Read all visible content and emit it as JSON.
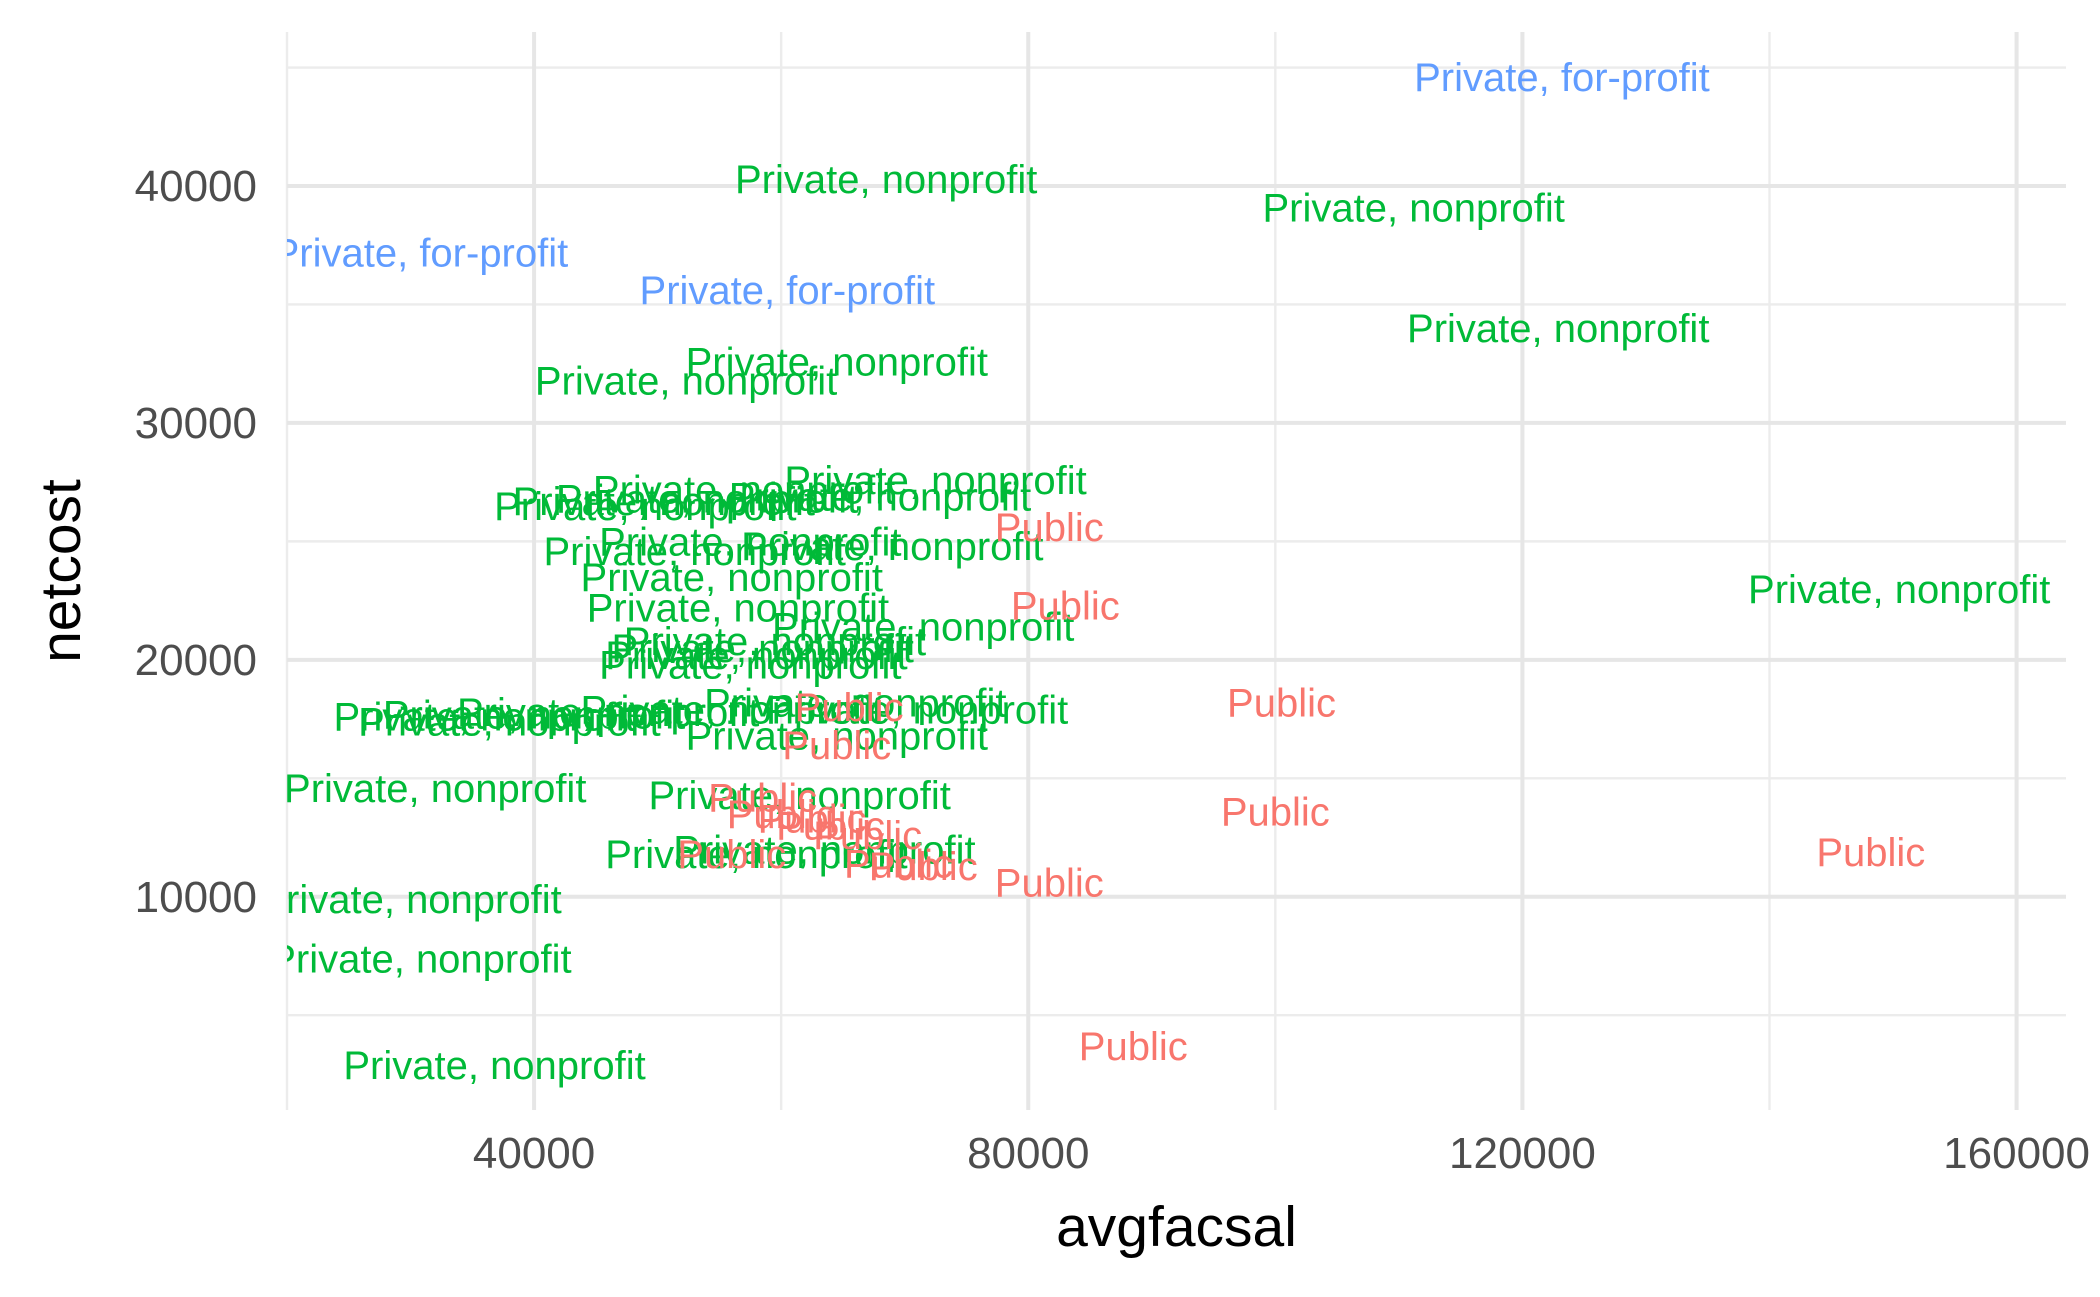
{
  "chart_data": {
    "type": "scatter",
    "geom": "text",
    "xlabel": "avgfacsal",
    "ylabel": "netcost",
    "xlim": [
      20000,
      164000
    ],
    "ylim": [
      1000,
      46500
    ],
    "x_ticks": [
      40000,
      80000,
      120000,
      160000
    ],
    "y_ticks": [
      10000,
      20000,
      30000,
      40000
    ],
    "grid": true,
    "legend": "none",
    "colors": {
      "Public": "#F8766D",
      "Private, nonprofit": "#00BA38",
      "Private, for-profit": "#619CFF"
    },
    "points": [
      {
        "x": 123200,
        "y": 44600,
        "label": "Private, for-profit"
      },
      {
        "x": 30800,
        "y": 37200,
        "label": "Private, for-profit"
      },
      {
        "x": 60500,
        "y": 35600,
        "label": "Private, for-profit"
      },
      {
        "x": 68500,
        "y": 40300,
        "label": "Private, nonprofit"
      },
      {
        "x": 111200,
        "y": 39100,
        "label": "Private, nonprofit"
      },
      {
        "x": 122900,
        "y": 34000,
        "label": "Private, nonprofit"
      },
      {
        "x": 64500,
        "y": 32600,
        "label": "Private, nonprofit"
      },
      {
        "x": 52300,
        "y": 31800,
        "label": "Private, nonprofit"
      },
      {
        "x": 72500,
        "y": 27600,
        "label": "Private, nonprofit"
      },
      {
        "x": 57000,
        "y": 27200,
        "label": "Private, nonprofit"
      },
      {
        "x": 68000,
        "y": 26900,
        "label": "Private, nonprofit"
      },
      {
        "x": 54000,
        "y": 26800,
        "label": "Private, nonprofit"
      },
      {
        "x": 50500,
        "y": 26700,
        "label": "Private, nonprofit"
      },
      {
        "x": 49000,
        "y": 26500,
        "label": "Private, nonprofit"
      },
      {
        "x": 57500,
        "y": 25000,
        "label": "Private, nonprofit"
      },
      {
        "x": 69000,
        "y": 24800,
        "label": "Private, nonprofit"
      },
      {
        "x": 53000,
        "y": 24600,
        "label": "Private, nonprofit"
      },
      {
        "x": 56000,
        "y": 23500,
        "label": "Private, nonprofit"
      },
      {
        "x": 56500,
        "y": 22200,
        "label": "Private, nonprofit"
      },
      {
        "x": 71500,
        "y": 21400,
        "label": "Private, nonprofit"
      },
      {
        "x": 59500,
        "y": 20800,
        "label": "Private, nonprofit"
      },
      {
        "x": 58500,
        "y": 20500,
        "label": "Private, nonprofit"
      },
      {
        "x": 58000,
        "y": 20200,
        "label": "Private, nonprofit"
      },
      {
        "x": 57500,
        "y": 19800,
        "label": "Private, nonprofit"
      },
      {
        "x": 150500,
        "y": 23000,
        "label": "Private, nonprofit"
      },
      {
        "x": 66000,
        "y": 18200,
        "label": "Private, nonprofit"
      },
      {
        "x": 71000,
        "y": 17900,
        "label": "Private, nonprofit"
      },
      {
        "x": 56000,
        "y": 17900,
        "label": "Private, nonprofit"
      },
      {
        "x": 46000,
        "y": 17800,
        "label": "Private, nonprofit"
      },
      {
        "x": 40000,
        "y": 17700,
        "label": "Private, nonprofit"
      },
      {
        "x": 36000,
        "y": 17600,
        "label": "Private, nonprofit"
      },
      {
        "x": 38000,
        "y": 17400,
        "label": "Private, nonprofit"
      },
      {
        "x": 64500,
        "y": 16800,
        "label": "Private, nonprofit"
      },
      {
        "x": 32000,
        "y": 14600,
        "label": "Private, nonprofit"
      },
      {
        "x": 61500,
        "y": 14300,
        "label": "Private, nonprofit"
      },
      {
        "x": 63500,
        "y": 12000,
        "label": "Private, nonprofit"
      },
      {
        "x": 58000,
        "y": 11800,
        "label": "Private, nonprofit"
      },
      {
        "x": 30000,
        "y": 9900,
        "label": "Private, nonprofit"
      },
      {
        "x": 30800,
        "y": 7400,
        "label": "Private, nonprofit"
      },
      {
        "x": 36800,
        "y": 2900,
        "label": "Private, nonprofit"
      },
      {
        "x": 81700,
        "y": 25600,
        "label": "Public"
      },
      {
        "x": 83000,
        "y": 22300,
        "label": "Public"
      },
      {
        "x": 100500,
        "y": 18200,
        "label": "Public"
      },
      {
        "x": 65500,
        "y": 18000,
        "label": "Public"
      },
      {
        "x": 64500,
        "y": 16400,
        "label": "Public"
      },
      {
        "x": 100000,
        "y": 13600,
        "label": "Public"
      },
      {
        "x": 148200,
        "y": 11900,
        "label": "Public"
      },
      {
        "x": 58500,
        "y": 14200,
        "label": "Public"
      },
      {
        "x": 60000,
        "y": 13500,
        "label": "Public"
      },
      {
        "x": 62500,
        "y": 13300,
        "label": "Public"
      },
      {
        "x": 64000,
        "y": 13000,
        "label": "Public"
      },
      {
        "x": 67000,
        "y": 12600,
        "label": "Public"
      },
      {
        "x": 56000,
        "y": 11800,
        "label": "Public"
      },
      {
        "x": 69500,
        "y": 11400,
        "label": "Public"
      },
      {
        "x": 71500,
        "y": 11300,
        "label": "Public"
      },
      {
        "x": 81700,
        "y": 10600,
        "label": "Public"
      },
      {
        "x": 88500,
        "y": 3700,
        "label": "Public"
      }
    ]
  }
}
